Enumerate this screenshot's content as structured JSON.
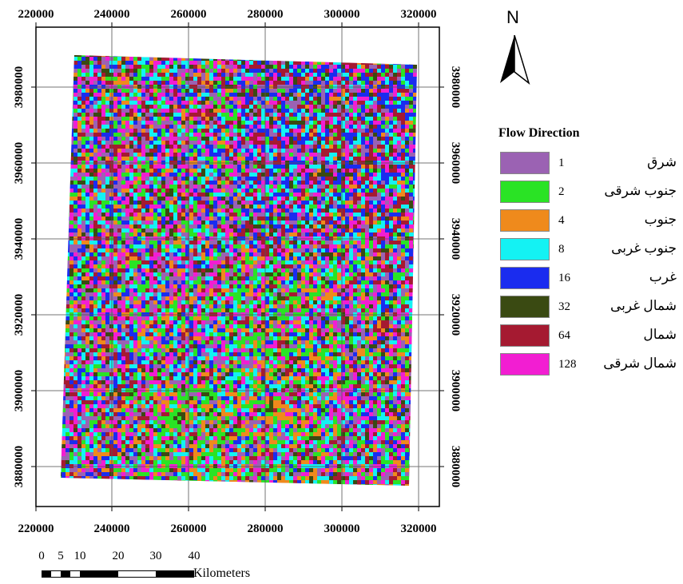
{
  "north_label": "N",
  "x_ticks": [
    "220000",
    "240000",
    "260000",
    "280000",
    "300000",
    "320000"
  ],
  "y_ticks": [
    "3980000",
    "3960000",
    "3940000",
    "3920000",
    "3900000",
    "3880000"
  ],
  "legend": {
    "title": "Flow Direction",
    "items": [
      {
        "value": "1",
        "name": "شرق",
        "color": "#9b62b3"
      },
      {
        "value": "2",
        "name": "جنوب شرقی",
        "color": "#2ae325"
      },
      {
        "value": "4",
        "name": "جنوب",
        "color": "#ef8a1c"
      },
      {
        "value": "8",
        "name": "جنوب غربی",
        "color": "#14f2f3"
      },
      {
        "value": "16",
        "name": "غرب",
        "color": "#1a2cef"
      },
      {
        "value": "32",
        "name": "شمال غربی",
        "color": "#3a4a12"
      },
      {
        "value": "64",
        "name": "شمال",
        "color": "#a51a31"
      },
      {
        "value": "128",
        "name": "شمال شرقی",
        "color": "#f21ed2"
      }
    ]
  },
  "scale_bar": {
    "labels": [
      "0",
      "5",
      "10",
      "20",
      "30",
      "40"
    ],
    "unit": "Kilometers"
  }
}
